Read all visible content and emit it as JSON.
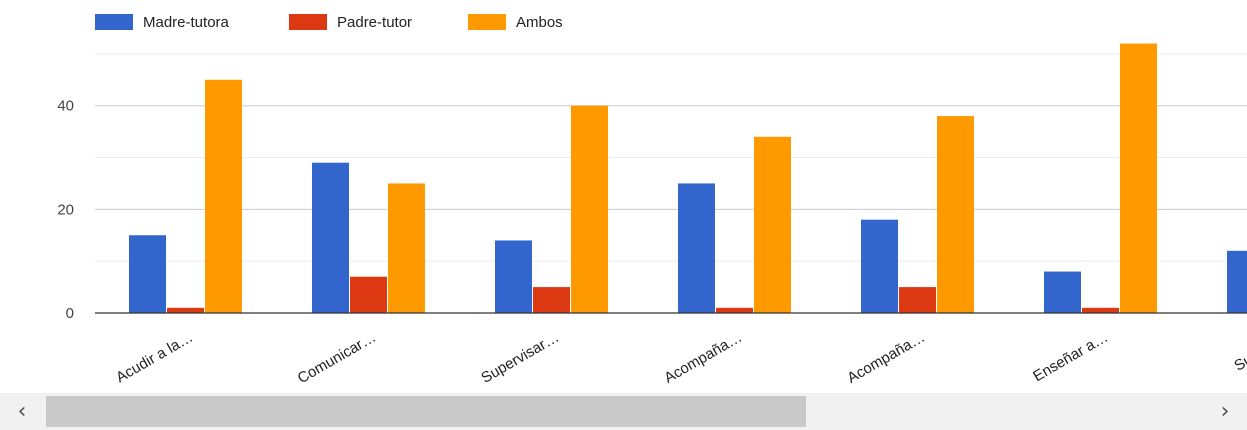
{
  "chart_data": {
    "type": "bar",
    "categories": [
      "Acudir a la…",
      "Comunicar…",
      "Supervisar…",
      "Acompaña…",
      "Acompaña…",
      "Enseñar a…",
      "Superv…"
    ],
    "series": [
      {
        "name": "Madre-tutora",
        "color": "#3366cc",
        "values": [
          15,
          29,
          14,
          25,
          18,
          8,
          12
        ]
      },
      {
        "name": "Padre-tutor",
        "color": "#dc3912",
        "values": [
          1,
          7,
          5,
          1,
          5,
          1,
          null
        ]
      },
      {
        "name": "Ambos",
        "color": "#ff9900",
        "values": [
          45,
          25,
          40,
          34,
          38,
          52,
          null
        ]
      }
    ],
    "y_ticks": [
      0,
      20,
      40
    ],
    "ylim": [
      0,
      52
    ],
    "grid": true,
    "legend_position": "top-left"
  },
  "scrollbar": {
    "left_arrow": "‹",
    "right_arrow": "›",
    "left_icon": "chevron-left-icon",
    "right_icon": "chevron-right-icon"
  }
}
